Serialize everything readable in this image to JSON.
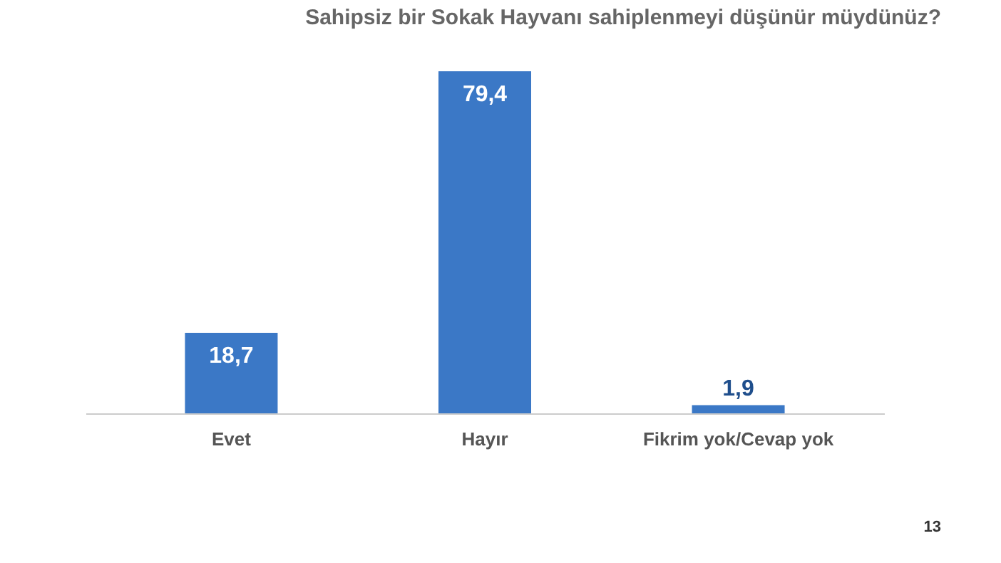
{
  "chart_data": {
    "type": "bar",
    "title": "Sahipsiz bir Sokak Hayvanı sahiplenmeyi düşünür müydünüz?",
    "categories": [
      "Evet",
      "Hayır",
      "Fikrim yok/Cevap yok"
    ],
    "values": [
      18.7,
      79.4,
      1.9
    ],
    "value_labels": [
      "18,7",
      "79,4",
      "1,9"
    ],
    "color": "#3b78c6",
    "annotations": [
      "13"
    ],
    "grid": false
  }
}
